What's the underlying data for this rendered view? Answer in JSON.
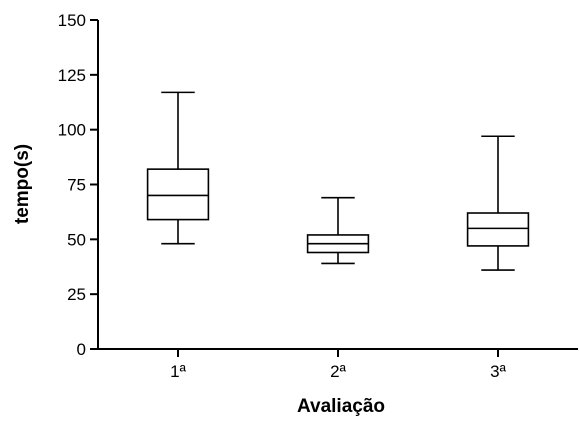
{
  "chart_data": {
    "type": "boxplot",
    "title": "",
    "xlabel": "Avaliação",
    "ylabel": "tempo(s)",
    "ylim": [
      0,
      150
    ],
    "yticks": [
      0,
      25,
      50,
      75,
      100,
      125,
      150
    ],
    "ytick_labels": [
      "0",
      "25",
      "50",
      "75",
      "100",
      "125",
      "150"
    ],
    "categories": [
      "1ª",
      "2ª",
      "3ª"
    ],
    "boxes": [
      {
        "category": "1ª",
        "min": 48,
        "q1": 59,
        "median": 70,
        "q3": 82,
        "max": 117
      },
      {
        "category": "2ª",
        "min": 39,
        "q1": 44,
        "median": 48,
        "q3": 52,
        "max": 69
      },
      {
        "category": "3ª",
        "min": 36,
        "q1": 47,
        "median": 55,
        "q3": 62,
        "max": 97
      }
    ],
    "grid": false
  }
}
